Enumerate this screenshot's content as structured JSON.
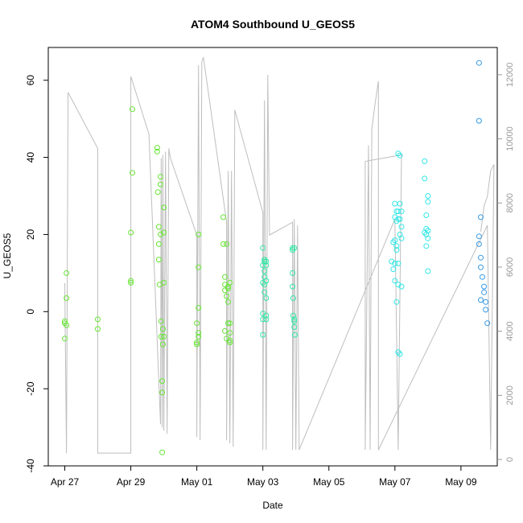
{
  "chart_data": {
    "type": "scatter",
    "title": "ATOM4 Southbound U_GEOS5",
    "xlabel": "Date",
    "ylabel": "U_GEOS5",
    "x_ticks": [
      "Apr 27",
      "Apr 29",
      "May 01",
      "May 03",
      "May 05",
      "May 07",
      "May 09"
    ],
    "x_tick_days": [
      0,
      2,
      4,
      6,
      8,
      10,
      12
    ],
    "x_range_days": [
      -0.5,
      13.1
    ],
    "y_ticks": [
      -40,
      -20,
      0,
      20,
      40,
      60
    ],
    "ylim": [
      -40,
      68.5
    ],
    "y2_ticks": [
      0,
      2000,
      4000,
      6000,
      8000,
      10000,
      12000
    ],
    "y2lim": [
      -200,
      12850
    ],
    "grid": false,
    "legend": "none",
    "altitude_trace_color": "#bebebe",
    "altitude_trace": [
      [
        0.0,
        5500
      ],
      [
        0.05,
        200
      ],
      [
        0.1,
        11450
      ],
      [
        1.0,
        9700
      ],
      [
        1.0,
        200
      ],
      [
        2.0,
        200
      ],
      [
        2.0,
        11950
      ],
      [
        2.55,
        10150
      ],
      [
        2.9,
        1100
      ],
      [
        2.92,
        9400
      ],
      [
        2.95,
        1000
      ],
      [
        2.97,
        9500
      ],
      [
        3.0,
        900
      ],
      [
        3.05,
        9600
      ],
      [
        3.1,
        800
      ],
      [
        3.15,
        9700
      ],
      [
        3.2,
        9400
      ],
      [
        4.0,
        7000
      ],
      [
        4.0,
        700
      ],
      [
        4.05,
        12300
      ],
      [
        4.1,
        600
      ],
      [
        4.15,
        12400
      ],
      [
        4.2,
        12550
      ],
      [
        4.9,
        7400
      ],
      [
        4.9,
        600
      ],
      [
        4.95,
        9000
      ],
      [
        5.0,
        500
      ],
      [
        5.05,
        9000
      ],
      [
        5.1,
        400
      ],
      [
        5.15,
        10900
      ],
      [
        6.0,
        7700
      ],
      [
        6.0,
        300
      ],
      [
        6.05,
        11200
      ],
      [
        6.1,
        300
      ],
      [
        6.15,
        12000
      ],
      [
        6.2,
        7000
      ],
      [
        6.9,
        7400
      ],
      [
        6.9,
        300
      ],
      [
        6.95,
        7500
      ],
      [
        7.0,
        300
      ],
      [
        7.05,
        7300
      ],
      [
        7.1,
        300
      ],
      [
        10.0,
        7500
      ],
      [
        10.1,
        300
      ],
      [
        10.2,
        9500
      ],
      [
        9.1,
        9300
      ],
      [
        9.1,
        300
      ],
      [
        9.2,
        9800
      ],
      [
        9.25,
        300
      ],
      [
        9.3,
        10300
      ],
      [
        9.4,
        11100
      ],
      [
        9.5,
        11800
      ],
      [
        9.5,
        300
      ],
      [
        12.8,
        7300
      ],
      [
        12.9,
        300
      ],
      [
        13.0,
        9200
      ],
      [
        12.9,
        9000
      ],
      [
        12.85,
        8600
      ],
      [
        12.8,
        8200
      ],
      [
        12.7,
        7900
      ],
      [
        12.6,
        7100
      ]
    ],
    "series": [
      {
        "values": [
          [
            0.0,
            -2.5
          ],
          [
            0.0,
            -3.0
          ],
          [
            0.0,
            -7.0
          ],
          [
            0.05,
            10.0
          ],
          [
            0.05,
            3.5
          ],
          [
            0.05,
            -3.5
          ],
          [
            1.0,
            -2.0
          ],
          [
            1.0,
            -4.5
          ],
          [
            2.0,
            8.0
          ],
          [
            2.0,
            7.5
          ],
          [
            2.0,
            20.5
          ],
          [
            2.05,
            36.0
          ],
          [
            2.05,
            52.5
          ],
          [
            2.8,
            42.5
          ],
          [
            2.8,
            41.5
          ],
          [
            2.82,
            31.0
          ],
          [
            2.85,
            22.0
          ],
          [
            2.85,
            17.5
          ],
          [
            2.85,
            13.5
          ],
          [
            2.87,
            7.0
          ],
          [
            2.9,
            35.0
          ],
          [
            2.9,
            33.0
          ],
          [
            2.9,
            20.0
          ],
          [
            2.92,
            -2.5
          ],
          [
            2.92,
            -6.5
          ],
          [
            2.95,
            -18.0
          ],
          [
            2.95,
            -21.0
          ],
          [
            2.95,
            -36.5
          ],
          [
            2.97,
            -4.5
          ],
          [
            2.97,
            -8.5
          ],
          [
            3.0,
            27.0
          ],
          [
            3.0,
            20.5
          ],
          [
            3.0,
            7.5
          ],
          [
            3.0,
            -6.5
          ],
          [
            4.0,
            -3.0
          ],
          [
            4.0,
            -8.0
          ],
          [
            4.0,
            -8.5
          ],
          [
            4.05,
            1.0
          ],
          [
            4.05,
            11.5
          ],
          [
            4.05,
            20.0
          ],
          [
            4.05,
            -5.5
          ],
          [
            4.05,
            -6.5
          ],
          [
            4.8,
            24.5
          ],
          [
            4.8,
            17.5
          ],
          [
            4.85,
            9.0
          ],
          [
            4.85,
            7.0
          ],
          [
            4.85,
            5.5
          ],
          [
            4.85,
            -5.0
          ],
          [
            4.9,
            17.5
          ],
          [
            4.9,
            4.0
          ],
          [
            4.9,
            -7.0
          ],
          [
            4.95,
            6.5
          ],
          [
            4.95,
            2.5
          ],
          [
            4.95,
            6.0
          ],
          [
            4.95,
            -3.0
          ],
          [
            5.0,
            7.5
          ],
          [
            5.0,
            -5.5
          ],
          [
            5.0,
            -7.5
          ],
          [
            5.0,
            -8.0
          ],
          [
            5.0,
            -3.0
          ]
        ]
      },
      {
        "values": [
          [
            6.0,
            16.5
          ],
          [
            6.0,
            12.0
          ],
          [
            6.0,
            7.5
          ],
          [
            6.0,
            -0.5
          ],
          [
            6.0,
            -2.0
          ],
          [
            6.0,
            -6.0
          ],
          [
            6.05,
            13.5
          ],
          [
            6.05,
            13.0
          ],
          [
            6.05,
            10.5
          ],
          [
            6.05,
            9.0
          ],
          [
            6.05,
            7.0
          ],
          [
            6.05,
            5.0
          ],
          [
            6.1,
            13.0
          ],
          [
            6.1,
            12.0
          ],
          [
            6.1,
            8.0
          ],
          [
            6.1,
            3.5
          ],
          [
            6.1,
            -1.0
          ],
          [
            6.1,
            -2.0
          ],
          [
            6.9,
            16.5
          ],
          [
            6.9,
            16.0
          ],
          [
            6.9,
            10.0
          ],
          [
            6.9,
            6.5
          ],
          [
            6.92,
            3.5
          ],
          [
            6.92,
            -1.0
          ],
          [
            6.95,
            16.5
          ],
          [
            6.95,
            -2.0
          ],
          [
            6.95,
            -2.5
          ],
          [
            6.95,
            -4.0
          ],
          [
            6.97,
            -6.0
          ]
        ]
      },
      {
        "values": [
          [
            10.0,
            28.0
          ],
          [
            10.0,
            24.5
          ],
          [
            10.0,
            18.5
          ],
          [
            10.0,
            12.5
          ],
          [
            10.05,
            26.0
          ],
          [
            10.05,
            23.5
          ],
          [
            10.05,
            17.0
          ],
          [
            10.05,
            16.0
          ],
          [
            10.05,
            2.5
          ],
          [
            10.1,
            41.0
          ],
          [
            10.1,
            26.0
          ],
          [
            10.1,
            24.0
          ],
          [
            10.1,
            12.5
          ],
          [
            10.1,
            -10.5
          ],
          [
            10.15,
            40.5
          ],
          [
            10.15,
            28.0
          ],
          [
            10.15,
            24.0
          ],
          [
            10.15,
            20.0
          ],
          [
            10.15,
            -11.0
          ],
          [
            10.2,
            26.0
          ],
          [
            10.2,
            22.0
          ],
          [
            10.2,
            19.0
          ],
          [
            10.2,
            6.5
          ],
          [
            9.95,
            18.0
          ],
          [
            9.9,
            13.0
          ],
          [
            9.95,
            11.0
          ],
          [
            10.0,
            8.0
          ],
          [
            10.1,
            7.0
          ],
          [
            10.9,
            39.0
          ],
          [
            10.9,
            34.5
          ],
          [
            10.95,
            25.0
          ],
          [
            10.95,
            21.5
          ],
          [
            10.95,
            20.0
          ],
          [
            10.95,
            17.0
          ],
          [
            11.0,
            30.0
          ],
          [
            11.0,
            28.5
          ],
          [
            11.0,
            21.0
          ],
          [
            11.0,
            19.0
          ],
          [
            11.0,
            10.5
          ],
          [
            10.9,
            20.5
          ]
        ]
      },
      {
        "values": [
          [
            12.55,
            64.5
          ],
          [
            12.55,
            49.5
          ],
          [
            12.6,
            24.5
          ],
          [
            12.55,
            19.5
          ],
          [
            12.55,
            17.5
          ],
          [
            12.6,
            14.0
          ],
          [
            12.6,
            11.5
          ],
          [
            12.65,
            9.0
          ],
          [
            12.7,
            6.5
          ],
          [
            12.7,
            5.0
          ],
          [
            12.6,
            3.0
          ],
          [
            12.75,
            2.5
          ],
          [
            12.75,
            0.5
          ],
          [
            12.8,
            -3.0
          ]
        ]
      }
    ],
    "series_colors": [
      "#66e633",
      "#33e6a6",
      "#33e6e6",
      "#3399e6"
    ]
  }
}
